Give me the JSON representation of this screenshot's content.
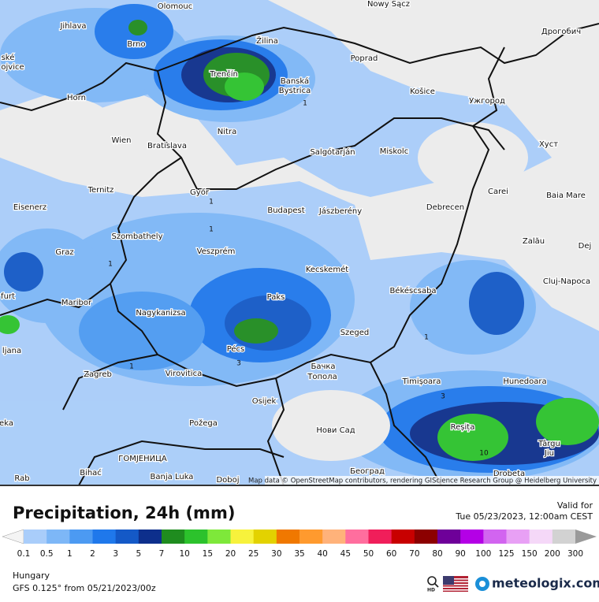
{
  "map": {
    "cities": [
      "Olomouc",
      "Nowy Sącz",
      "Jihlava",
      "Brno",
      "Žilina",
      "Poprad",
      "Дрогобич",
      "ské",
      "ojvice",
      "Trenčín",
      "Banská",
      "Bystrica",
      "Horn",
      "Košice",
      "Ужгород",
      "Nitra",
      "Wien",
      "Bratislava",
      "Salgótarján",
      "Miskolc",
      "Хуст",
      "Ternitz",
      "Győr",
      "Carei",
      "Baia Mare",
      "Eisenerz",
      "Budapest",
      "Jászberény",
      "Debrecen",
      "Szombathely",
      "Zalău",
      "Graz",
      "Veszprém",
      "Dej",
      "Kecskemét",
      "Cluj-Napoca",
      "furt",
      "Paks",
      "Békéscsaba",
      "Maribor",
      "Nagykanizsa",
      "Pécs",
      "Szeged",
      "ljana",
      "Zagreb",
      "Virovitica",
      "Бачка",
      "Топола",
      "Timișoara",
      "Hunedoara",
      "Osijek",
      "Požega",
      "Нови Сад",
      "Reșița",
      "Târgu",
      "Jiu",
      "eka",
      "Bihać",
      "ГОМЈЕНИЦА",
      "Banja Luka",
      "Doboj",
      "Београд",
      "Drobeta",
      "Rab"
    ],
    "contour_labels": [
      "1",
      "1",
      "1",
      "1",
      "1",
      "3",
      "1",
      "3",
      "10"
    ],
    "attribution": "Map data © OpenStreetMap contributors, rendering GIScience Research Group @ Heidelberg University"
  },
  "footer": {
    "title": "Precipitation, 24h (mm)",
    "valid_label": "Valid for",
    "valid_time": "Tue 05/23/2023, 12:00am CEST",
    "region": "Hungary",
    "model": "GFS 0.125° from  05/21/2023/00z",
    "hd": "HD",
    "brand": "meteologix.com"
  },
  "legend": {
    "labels": [
      "0.1",
      "0.5",
      "1",
      "2",
      "3",
      "5",
      "7",
      "10",
      "15",
      "20",
      "25",
      "30",
      "35",
      "40",
      "45",
      "50",
      "60",
      "70",
      "80",
      "90",
      "100",
      "125",
      "150",
      "200",
      "300"
    ],
    "colors": [
      "#a9cdfa",
      "#7db7f7",
      "#4c9af2",
      "#1f78eb",
      "#1459c7",
      "#0d2f8c",
      "#1f8c1f",
      "#2cc22c",
      "#7ee83a",
      "#f7f23c",
      "#e3d200",
      "#f07800",
      "#ff9a2e",
      "#ffb27a",
      "#ff6e9e",
      "#f01e5a",
      "#c80000",
      "#8c0000",
      "#6e0099",
      "#b400e6",
      "#d264f0",
      "#e8a0f5",
      "#f5d8f8",
      "#d2d2d2"
    ],
    "under_color": "#f4f4f4",
    "over_color": "#9a9a9a"
  }
}
